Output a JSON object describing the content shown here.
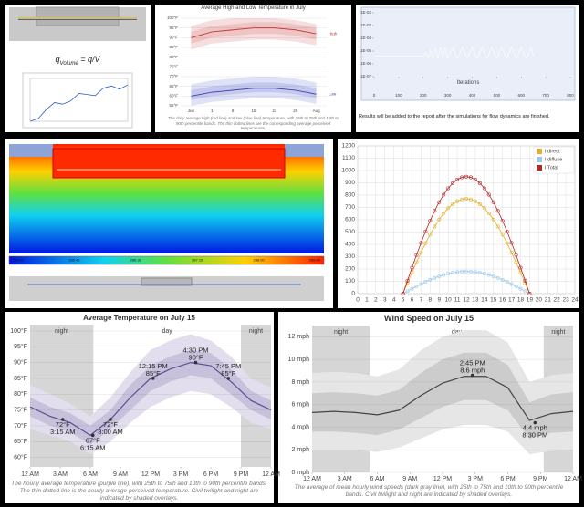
{
  "panels": {
    "flux": {
      "symbol": "q",
      "subscript": "Volume",
      "equation": "= q/V"
    },
    "heatmap": {
      "colorbar_labels": [
        "284.52",
        "285.46",
        "286.31",
        "287.15",
        "288.00",
        "288.84"
      ]
    }
  },
  "chart_data": [
    {
      "type": "line",
      "x": [
        0,
        250,
        500,
        750,
        1000,
        1250,
        1500,
        1750,
        2000,
        2250,
        2500,
        2750,
        3000
      ],
      "xlim": [
        0,
        3000
      ],
      "ylim": [
        0,
        8
      ],
      "series": [
        {
          "color": "#3060c0",
          "values": [
            0,
            0.5,
            2.2,
            3.5,
            3.2,
            3.8,
            5.2,
            5.0,
            4.8,
            6.2,
            6.6,
            6.0,
            6.8
          ]
        }
      ]
    },
    {
      "type": "band_line",
      "title": "Average High and Low Temperature in July",
      "categories": [
        "Jun",
        "1",
        "8",
        "15",
        "22",
        "29",
        "Aug"
      ],
      "ylim": [
        55,
        100
      ],
      "yticks": [
        {
          "value": 55,
          "label": "55°F"
        },
        {
          "value": 60,
          "label": "60°F"
        },
        {
          "value": 65,
          "label": "65°F"
        },
        {
          "value": 70,
          "label": "70°F"
        },
        {
          "value": 75,
          "label": "75°F"
        },
        {
          "value": 80,
          "label": "80°F"
        },
        {
          "value": 85,
          "label": "85°F"
        },
        {
          "value": 90,
          "label": "90°F"
        },
        {
          "value": 95,
          "label": "95°F"
        },
        {
          "value": 100,
          "label": "100°F"
        }
      ],
      "grid": true,
      "series_labels": "end",
      "series": [
        {
          "name": "High",
          "color": "#c04040",
          "band_colors": [
            "#f6dede",
            "#efc4c4"
          ],
          "values": [
            90,
            93,
            94,
            95,
            95,
            94,
            92
          ],
          "p10": [
            84,
            87,
            88,
            89,
            89,
            88,
            86
          ],
          "p25": [
            87,
            90,
            91,
            92,
            92,
            91,
            89
          ],
          "p75": [
            93,
            96,
            97,
            98,
            98,
            97,
            95
          ],
          "p90": [
            96,
            99,
            100,
            100,
            100,
            99,
            97
          ]
        },
        {
          "name": "Low",
          "color": "#4848b0",
          "band_colors": [
            "#dfe1f6",
            "#c4c8ee"
          ],
          "values": [
            60,
            62,
            63,
            64,
            64,
            63,
            61
          ],
          "p10": [
            55,
            57,
            58,
            59,
            59,
            58,
            56
          ],
          "p25": [
            58,
            60,
            61,
            62,
            62,
            61,
            59
          ],
          "p75": [
            63,
            65,
            66,
            67,
            67,
            66,
            64
          ],
          "p90": [
            66,
            68,
            69,
            70,
            70,
            69,
            67
          ]
        }
      ],
      "caption": "The daily average high (red line) and low (blue line) temperature, with 25th to 75th and 10th to 90th percentile bands. The thin dotted lines are the corresponding average perceived temperatures."
    },
    {
      "type": "line",
      "log": true,
      "xlabel": "Iterations",
      "caption": "Results will be added to the report after the simulations for flow dynamics are finished.",
      "x": [
        0,
        50,
        100,
        150,
        200,
        210,
        220,
        230,
        240,
        250,
        260,
        270,
        280,
        290,
        300,
        320,
        340,
        360,
        380,
        400,
        420,
        440,
        460,
        480,
        500,
        520,
        540,
        560,
        580,
        600,
        620,
        640,
        650
      ],
      "xlim": [
        0,
        800
      ],
      "xticks": [
        0,
        100,
        200,
        300,
        400,
        500,
        600,
        700,
        800
      ],
      "ylim": [
        1e-07,
        0.01
      ],
      "yticks": [
        {
          "value": 1e-07,
          "label": "1E-07"
        },
        {
          "value": 1e-06,
          "label": "1E-06"
        },
        {
          "value": 1e-05,
          "label": "1E-05"
        },
        {
          "value": 0.0001,
          "label": "1E-04"
        },
        {
          "value": 0.001,
          "label": "1E-03"
        },
        {
          "value": 0.01,
          "label": "1E-02"
        }
      ],
      "series": [
        {
          "color": "#ffffff",
          "values": [
            4e-06,
            4e-06,
            4e-06,
            4e-06,
            4e-06,
            8e-06,
            3e-06,
            1.2e-05,
            2.8e-06,
            1.6e-05,
            2.6e-06,
            2e-05,
            2.5e-06,
            2e-05,
            2.5e-06,
            2e-05,
            2.5e-06,
            2e-05,
            2.5e-06,
            2e-05,
            2.5e-06,
            2e-05,
            2.5e-06,
            2e-05,
            2.5e-06,
            2e-05,
            2.5e-06,
            2e-05,
            2.5e-06,
            2e-05,
            2.5e-06,
            2e-05,
            4e-06
          ]
        }
      ]
    },
    {
      "type": "line",
      "markers": true,
      "grid": true,
      "legend": "top-right",
      "x": [
        5,
        5.5,
        6,
        6.5,
        7,
        7.5,
        8,
        8.5,
        9,
        9.5,
        10,
        10.5,
        11,
        11.5,
        12,
        12.5,
        13,
        13.5,
        14,
        14.5,
        15,
        15.5,
        16,
        16.5,
        17,
        17.5,
        18,
        18.5,
        19
      ],
      "xlim": [
        0,
        24
      ],
      "xticks": [
        0,
        1,
        2,
        3,
        4,
        5,
        6,
        7,
        8,
        9,
        10,
        11,
        12,
        13,
        14,
        15,
        16,
        17,
        18,
        19,
        20,
        21,
        22,
        23,
        24
      ],
      "ylim": [
        0,
        1200
      ],
      "yticks": [
        0,
        100,
        200,
        300,
        400,
        500,
        600,
        700,
        800,
        900,
        1000,
        1100,
        1200
      ],
      "series": [
        {
          "name": "I direct",
          "color": "#e0b030",
          "values": [
            0,
            86,
            171,
            255,
            334,
            410,
            480,
            544,
            602,
            652,
            694,
            727,
            751,
            765,
            770,
            765,
            751,
            727,
            694,
            652,
            602,
            544,
            480,
            410,
            334,
            255,
            171,
            86,
            0
          ]
        },
        {
          "name": "I diffuse",
          "color": "#9cc8ea",
          "values": [
            0,
            20,
            40,
            60,
            78,
            96,
            112,
            127,
            141,
            152,
            162,
            170,
            175,
            179,
            180,
            179,
            175,
            170,
            162,
            152,
            141,
            127,
            112,
            96,
            78,
            60,
            40,
            20,
            0
          ]
        },
        {
          "name": "I Total",
          "color": "#b02828",
          "values": [
            0,
            106,
            211,
            314,
            412,
            505,
            592,
            672,
            743,
            804,
            856,
            897,
            926,
            944,
            950,
            944,
            926,
            897,
            856,
            804,
            743,
            672,
            592,
            505,
            412,
            314,
            211,
            106,
            0
          ]
        }
      ]
    },
    {
      "type": "band_line",
      "title": "Average Temperature on July 15",
      "x": [
        0,
        2,
        4,
        6,
        8,
        10,
        12,
        14,
        16,
        18,
        20,
        22,
        24
      ],
      "xlim": [
        0,
        24
      ],
      "xticks": [
        {
          "value": 0,
          "label": "12 AM"
        },
        {
          "value": 3,
          "label": "3 AM"
        },
        {
          "value": 6,
          "label": "6 AM"
        },
        {
          "value": 9,
          "label": "9 AM"
        },
        {
          "value": 12,
          "label": "12 PM"
        },
        {
          "value": 15,
          "label": "3 PM"
        },
        {
          "value": 18,
          "label": "6 PM"
        },
        {
          "value": 21,
          "label": "9 PM"
        },
        {
          "value": 24,
          "label": "12 AM"
        }
      ],
      "ylim": [
        57,
        102
      ],
      "yticks": [
        {
          "value": 60,
          "label": "60°F"
        },
        {
          "value": 65,
          "label": "65°F"
        },
        {
          "value": 70,
          "label": "70°F"
        },
        {
          "value": 75,
          "label": "75°F"
        },
        {
          "value": 80,
          "label": "80°F"
        },
        {
          "value": 85,
          "label": "85°F"
        },
        {
          "value": 90,
          "label": "90°F"
        },
        {
          "value": 95,
          "label": "95°F"
        },
        {
          "value": 100,
          "label": "100°F"
        }
      ],
      "grid": true,
      "shades": [
        {
          "label": "night",
          "from": 0,
          "to": 6.3
        },
        {
          "label": "night",
          "from": 21,
          "to": 24
        }
      ],
      "day_label": "day",
      "series": [
        {
          "color": "#5e4e92",
          "band_colors": [
            "#e2deee",
            "#c8c1dc"
          ],
          "values": [
            76,
            73,
            71,
            67,
            72,
            79,
            85,
            88,
            90,
            89,
            84,
            78,
            75
          ],
          "p10": [
            69,
            67,
            65,
            61,
            65,
            71,
            76,
            79,
            81,
            80,
            76,
            71,
            69
          ],
          "p25": [
            73,
            70,
            68,
            64,
            69,
            75,
            81,
            84,
            86,
            85,
            80,
            75,
            72
          ],
          "p75": [
            79,
            76,
            74,
            70,
            75,
            83,
            89,
            92,
            94,
            93,
            88,
            81,
            78
          ],
          "p90": [
            83,
            80,
            77,
            73,
            79,
            87,
            94,
            97,
            99,
            97,
            92,
            85,
            82
          ]
        }
      ],
      "annotations": [
        {
          "x": 3.25,
          "y": 72,
          "lines": [
            "72°F",
            "3:15 AM"
          ]
        },
        {
          "x": 6.25,
          "y": 67,
          "lines": [
            "67°F",
            "6:15 AM"
          ]
        },
        {
          "x": 8,
          "y": 72,
          "lines": [
            "72°F",
            "8:00 AM"
          ]
        },
        {
          "x": 12.25,
          "y": 85,
          "lines": [
            "12:15 PM",
            "85°F"
          ]
        },
        {
          "x": 16.5,
          "y": 90,
          "lines": [
            "4:30 PM",
            "90°F"
          ]
        },
        {
          "x": 19.75,
          "y": 85,
          "lines": [
            "7:45 PM",
            "85°F"
          ]
        }
      ],
      "caption": "The hourly average temperature (purple line), with 25th to 75th and 10th to 90th percentile bands. The thin dotted line is the hourly average perceived temperature. Civil twilight and night are indicated by shaded overlays."
    },
    {
      "type": "band_line",
      "title": "Wind Speed on July 15",
      "x": [
        0,
        2,
        4,
        6,
        8,
        10,
        12,
        14,
        16,
        18,
        20,
        22,
        24
      ],
      "xlim": [
        0,
        24
      ],
      "xticks": [
        {
          "value": 0,
          "label": "12 AM"
        },
        {
          "value": 3,
          "label": "3 AM"
        },
        {
          "value": 6,
          "label": "6 AM"
        },
        {
          "value": 9,
          "label": "9 AM"
        },
        {
          "value": 12,
          "label": "12 PM"
        },
        {
          "value": 15,
          "label": "3 PM"
        },
        {
          "value": 18,
          "label": "6 PM"
        },
        {
          "value": 21,
          "label": "9 PM"
        },
        {
          "value": 24,
          "label": "12 AM"
        }
      ],
      "ylim": [
        0,
        13
      ],
      "yticks": [
        {
          "value": 0,
          "label": "0 mph"
        },
        {
          "value": 2,
          "label": "2 mph"
        },
        {
          "value": 4,
          "label": "4 mph"
        },
        {
          "value": 6,
          "label": "6 mph"
        },
        {
          "value": 8,
          "label": "8 mph"
        },
        {
          "value": 10,
          "label": "10 mph"
        },
        {
          "value": 12,
          "label": "12 mph"
        }
      ],
      "grid": true,
      "shades": [
        {
          "label": "night",
          "from": 0,
          "to": 5.3
        },
        {
          "label": "night",
          "from": 21.3,
          "to": 24
        }
      ],
      "day_label": "day",
      "series": [
        {
          "color": "#444444",
          "band_colors": [
            "#e6e6e6",
            "#cccccc"
          ],
          "values": [
            5.3,
            5.4,
            5.3,
            5.1,
            5.5,
            6.8,
            7.9,
            8.5,
            8.5,
            7.5,
            4.6,
            5.2,
            5.4
          ],
          "p10": [
            2.0,
            2.0,
            2.0,
            1.8,
            2.2,
            3.0,
            3.8,
            4.2,
            4.2,
            3.6,
            1.6,
            1.9,
            2.0
          ],
          "p25": [
            3.6,
            3.6,
            3.5,
            3.3,
            3.8,
            4.8,
            5.8,
            6.4,
            6.4,
            5.5,
            3.0,
            3.5,
            3.6
          ],
          "p75": [
            7.0,
            7.1,
            7.0,
            6.8,
            7.3,
            8.8,
            10.0,
            10.6,
            10.6,
            9.5,
            6.2,
            6.9,
            7.1
          ],
          "p90": [
            8.8,
            8.9,
            8.8,
            8.5,
            9.1,
            10.8,
            12.0,
            12.6,
            12.6,
            11.5,
            8.0,
            8.6,
            8.8
          ]
        }
      ],
      "annotations": [
        {
          "x": 14.75,
          "y": 8.6,
          "lines": [
            "2:45 PM",
            "8.6 mph"
          ]
        },
        {
          "x": 20.5,
          "y": 4.4,
          "lines": [
            "4.4 mph",
            "8:30 PM"
          ]
        }
      ],
      "caption": "The average of mean hourly wind speeds (dark gray line), with 25th to 75th and 10th to 90th percentile bands. Civil twilight and night are indicated by shaded overlays."
    }
  ]
}
